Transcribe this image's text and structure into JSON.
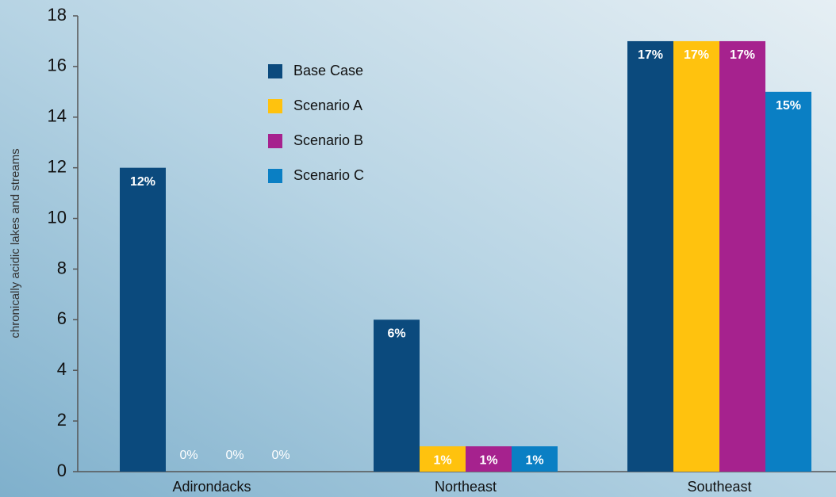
{
  "chart_data": {
    "type": "bar",
    "ylabel": "chronically acidic lakes and streams",
    "categories": [
      "Adirondacks",
      "Northeast",
      "Southeast"
    ],
    "series": [
      {
        "name": "Base Case",
        "color": "#0b4a7d",
        "values": [
          12,
          6,
          17
        ],
        "value_labels": [
          "12%",
          "6%",
          "17%"
        ]
      },
      {
        "name": "Scenario A",
        "color": "#ffc20e",
        "values": [
          0,
          1,
          17
        ],
        "value_labels": [
          "0%",
          "1%",
          "17%"
        ]
      },
      {
        "name": "Scenario B",
        "color": "#a6228e",
        "values": [
          0,
          1,
          17
        ],
        "value_labels": [
          "0%",
          "1%",
          "17%"
        ]
      },
      {
        "name": "Scenario C",
        "color": "#0a7fc4",
        "values": [
          0,
          1,
          15
        ],
        "value_labels": [
          "0%",
          "1%",
          "15%"
        ]
      }
    ],
    "ylim": [
      0,
      18
    ],
    "yticks": [
      0,
      2,
      4,
      6,
      8,
      10,
      12,
      14,
      16,
      18
    ],
    "grid": false
  }
}
